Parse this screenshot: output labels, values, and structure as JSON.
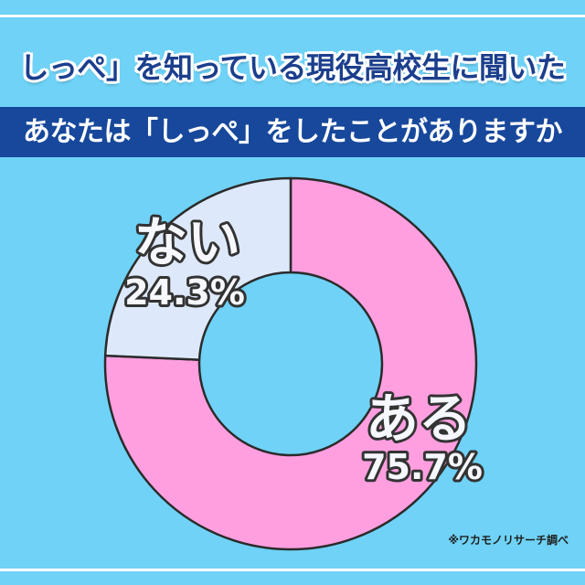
{
  "colors": {
    "background": "#6fd2f6",
    "title_text": "#1b3f8d",
    "band": "#17489b",
    "outline": "#2b2b2b"
  },
  "header": {
    "title": "しっぺ」を知っている現役高校生に聞いた"
  },
  "chart_data": {
    "type": "pie",
    "donut": true,
    "title": "あなたは「しっぺ」をしたことがありますか",
    "categories": [
      "ある",
      "ない"
    ],
    "values": [
      75.7,
      24.3
    ],
    "data_labels": [
      "75.7%",
      "24.3%"
    ],
    "colors": [
      "#ff9fe0",
      "#dde9fb"
    ]
  },
  "footnote": "※ワカモノリサーチ調べ"
}
